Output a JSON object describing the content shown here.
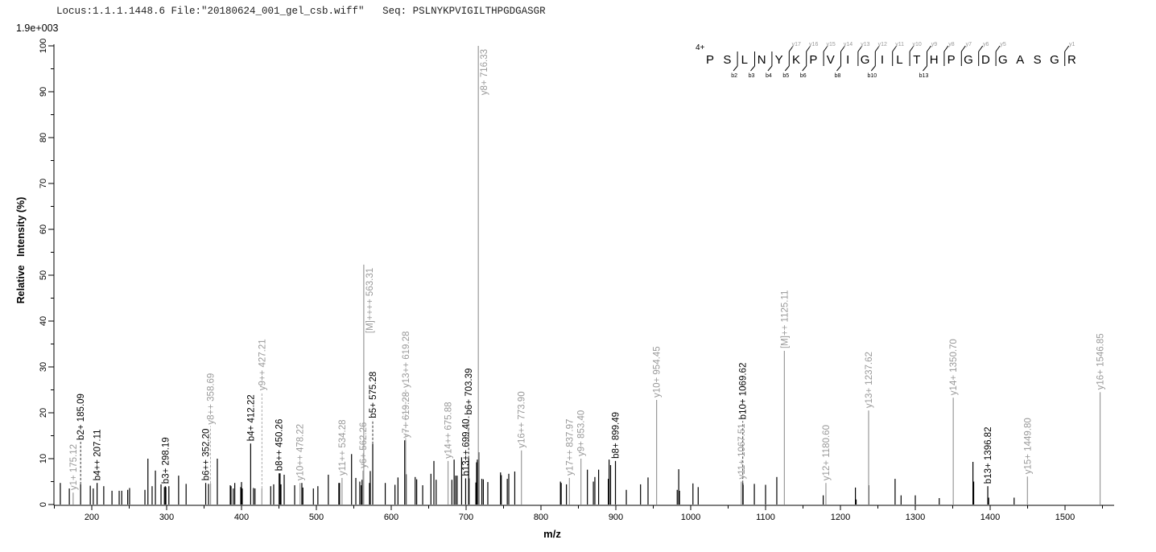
{
  "header": {
    "locus": "Locus:1.1.1.1448.6 File:\"20180624_001_gel_csb.wiff\"   Seq: PSLNYKPVIGILTHPGDGASGR",
    "intensity_scale": "1.9e+003"
  },
  "colors": {
    "b_ion": "#000000",
    "y_ion": "#999999",
    "peak": "#000000",
    "axis": "#000000"
  },
  "sequence_map": {
    "charge": "4+",
    "residues": [
      "P",
      "S",
      "L",
      "N",
      "Y",
      "K",
      "P",
      "V",
      "I",
      "G",
      "I",
      "L",
      "T",
      "H",
      "P",
      "G",
      "D",
      "G",
      "A",
      "S",
      "G",
      "R"
    ],
    "b_breaks": [
      {
        "after": 2,
        "label": "b2"
      },
      {
        "after": 3,
        "label": "b3"
      },
      {
        "after": 4,
        "label": "b4"
      },
      {
        "after": 5,
        "label": "b5"
      },
      {
        "after": 6,
        "label": "b6"
      },
      {
        "after": 8,
        "label": "b8"
      },
      {
        "after": 10,
        "label": "b10"
      },
      {
        "after": 13,
        "label": "b13"
      }
    ],
    "y_breaks": [
      {
        "after": 5,
        "label": "y17"
      },
      {
        "after": 6,
        "label": "y16"
      },
      {
        "after": 7,
        "label": "y15"
      },
      {
        "after": 8,
        "label": "y14"
      },
      {
        "after": 9,
        "label": "y13"
      },
      {
        "after": 10,
        "label": "y12"
      },
      {
        "after": 11,
        "label": "y11"
      },
      {
        "after": 12,
        "label": "y10"
      },
      {
        "after": 13,
        "label": "y9"
      },
      {
        "after": 14,
        "label": "y8"
      },
      {
        "after": 15,
        "label": "y7"
      },
      {
        "after": 16,
        "label": "y6"
      },
      {
        "after": 17,
        "label": "y5"
      },
      {
        "after": 21,
        "label": "y1"
      }
    ]
  },
  "chart_data": {
    "type": "bar",
    "title": "",
    "xlabel": "m/z",
    "ylabel": "Relative   Intensity (%)",
    "xlim": [
      150,
      1565
    ],
    "ylim": [
      0,
      100
    ],
    "xticks": [
      200,
      300,
      400,
      500,
      600,
      700,
      800,
      900,
      1000,
      1100,
      1200,
      1300,
      1400,
      1500
    ],
    "yticks": [
      0,
      10,
      20,
      30,
      40,
      50,
      60,
      70,
      80,
      90,
      100
    ],
    "grid": false,
    "labeled_peaks": [
      {
        "mz": 175.12,
        "intensity": 2.6,
        "label": "y1+ 175.12",
        "ion": "y"
      },
      {
        "mz": 185.09,
        "intensity": 4.4,
        "label": "b2+ 185.09",
        "ion": "b"
      },
      {
        "mz": 207.11,
        "intensity": 4.7,
        "label": "b4++ 207.11",
        "ion": "b"
      },
      {
        "mz": 298.19,
        "intensity": 4.0,
        "label": "b3+ 298.19",
        "ion": "b"
      },
      {
        "mz": 352.2,
        "intensity": 4.7,
        "label": "b6++ 352.20",
        "ion": "b"
      },
      {
        "mz": 358.69,
        "intensity": 4.6,
        "label": "y8++ 358.69",
        "ion": "y"
      },
      {
        "mz": 412.22,
        "intensity": 13.3,
        "label": "b4+ 412.22",
        "ion": "b"
      },
      {
        "mz": 427.21,
        "intensity": 3.5,
        "label": "y9++ 427.21",
        "ion": "y"
      },
      {
        "mz": 450.26,
        "intensity": 6.8,
        "label": "b8++ 450.26",
        "ion": "b"
      },
      {
        "mz": 478.22,
        "intensity": 4.7,
        "label": "y10++ 478.22",
        "ion": "y"
      },
      {
        "mz": 534.28,
        "intensity": 5.8,
        "label": "y11++ 534.28",
        "ion": "y"
      },
      {
        "mz": 562.26,
        "intensity": 7.4,
        "label": "y6+ 562.26",
        "ion": "y"
      },
      {
        "mz": 563.31,
        "intensity": 52.3,
        "label": "[M]++++ 563.31",
        "ion": "y"
      },
      {
        "mz": 575.28,
        "intensity": 13.2,
        "label": "b5+ 575.28",
        "ion": "b"
      },
      {
        "mz": 619.28,
        "intensity": 14.0,
        "label": "y7+ 619.28",
        "ion": "y"
      },
      {
        "mz": 619.28,
        "intensity": 14.0,
        "label": "y13++ 619.28",
        "ion": "y"
      },
      {
        "mz": 675.88,
        "intensity": 9.5,
        "label": "y14++ 675.88",
        "ion": "y"
      },
      {
        "mz": 699.4,
        "intensity": 5.7,
        "label": "b13++ 699.40",
        "ion": "b"
      },
      {
        "mz": 703.39,
        "intensity": 10.1,
        "label": "b6+ 703.39",
        "ion": "b"
      },
      {
        "mz": 716.33,
        "intensity": 100,
        "label": "y8+ 716.33",
        "ion": "y"
      },
      {
        "mz": 773.9,
        "intensity": 11.8,
        "label": "y16++ 773.90",
        "ion": "y"
      },
      {
        "mz": 837.97,
        "intensity": 5.8,
        "label": "y17++ 837.97",
        "ion": "y"
      },
      {
        "mz": 853.4,
        "intensity": 10.0,
        "label": "y9+ 853.40",
        "ion": "y"
      },
      {
        "mz": 899.49,
        "intensity": 9.5,
        "label": "b8+ 899.49",
        "ion": "b"
      },
      {
        "mz": 954.45,
        "intensity": 22.8,
        "label": "y10+ 954.45",
        "ion": "y"
      },
      {
        "mz": 1067.51,
        "intensity": 5.0,
        "label": "y11+ 1067.51",
        "ion": "y"
      },
      {
        "mz": 1069.62,
        "intensity": 4.7,
        "label": "b10+ 1069.62",
        "ion": "b"
      },
      {
        "mz": 1125.11,
        "intensity": 33.5,
        "label": "[M]++ 1125.11",
        "ion": "y"
      },
      {
        "mz": 1180.6,
        "intensity": 4.7,
        "label": "y12+ 1180.60",
        "ion": "y"
      },
      {
        "mz": 1237.62,
        "intensity": 20.5,
        "label": "y13+ 1237.62",
        "ion": "y"
      },
      {
        "mz": 1350.7,
        "intensity": 23.3,
        "label": "y14+ 1350.70",
        "ion": "y"
      },
      {
        "mz": 1396.82,
        "intensity": 4.0,
        "label": "b13+ 1396.82",
        "ion": "b"
      },
      {
        "mz": 1449.8,
        "intensity": 6.1,
        "label": "y15+ 1449.80",
        "ion": "y"
      },
      {
        "mz": 1546.85,
        "intensity": 24.5,
        "label": "y16+ 1546.85",
        "ion": "y"
      }
    ],
    "peaks": [
      [
        158,
        4.7
      ],
      [
        170,
        3.5
      ],
      [
        198,
        4.1
      ],
      [
        202,
        3.5
      ],
      [
        216,
        4
      ],
      [
        227,
        3
      ],
      [
        236.6,
        3
      ],
      [
        240,
        3
      ],
      [
        248,
        3.2
      ],
      [
        250.5,
        3.6
      ],
      [
        271,
        3.2
      ],
      [
        275,
        10
      ],
      [
        280.6,
        4
      ],
      [
        285,
        7.4
      ],
      [
        292.5,
        4.4
      ],
      [
        297,
        3.8
      ],
      [
        299,
        3.8
      ],
      [
        303,
        4
      ],
      [
        316,
        6.3
      ],
      [
        326,
        4.5
      ],
      [
        356,
        4.5
      ],
      [
        367.7,
        10
      ],
      [
        385,
        4.2
      ],
      [
        386,
        4
      ],
      [
        389,
        3.5
      ],
      [
        391,
        4.7
      ],
      [
        399,
        3.8
      ],
      [
        400,
        4.9
      ],
      [
        401,
        3.5
      ],
      [
        416,
        3.6
      ],
      [
        418,
        3.5
      ],
      [
        439,
        4
      ],
      [
        443,
        4.4
      ],
      [
        451.5,
        6.8
      ],
      [
        452.7,
        4.4
      ],
      [
        457,
        6.5
      ],
      [
        471,
        4.2
      ],
      [
        480.6,
        4.7
      ],
      [
        482,
        3.7
      ],
      [
        496,
        3.5
      ],
      [
        502,
        4
      ],
      [
        516,
        6.5
      ],
      [
        530,
        4.7
      ],
      [
        531,
        4.7
      ],
      [
        547,
        11
      ],
      [
        552.7,
        5.8
      ],
      [
        558,
        5
      ],
      [
        560,
        4.2
      ],
      [
        561,
        5.4
      ],
      [
        571,
        4.7
      ],
      [
        572,
        7.3
      ],
      [
        592,
        4.7
      ],
      [
        605,
        4.3
      ],
      [
        609,
        5.9
      ],
      [
        618,
        14
      ],
      [
        620,
        6.6
      ],
      [
        632,
        6
      ],
      [
        634,
        5.5
      ],
      [
        642,
        4.2
      ],
      [
        653,
        6.7
      ],
      [
        657,
        9.5
      ],
      [
        660,
        5.4
      ],
      [
        681,
        5.4
      ],
      [
        684,
        9.8
      ],
      [
        686,
        6.3
      ],
      [
        688,
        6.3
      ],
      [
        694,
        10.3
      ],
      [
        704,
        5.7
      ],
      [
        713,
        4.8
      ],
      [
        714,
        9.2
      ],
      [
        715,
        9.8
      ],
      [
        717,
        11.4
      ],
      [
        721,
        5.6
      ],
      [
        723,
        5.5
      ],
      [
        729,
        4.9
      ],
      [
        746,
        7
      ],
      [
        747,
        6.4
      ],
      [
        755,
        5.6
      ],
      [
        757,
        6.7
      ],
      [
        765,
        7.2
      ],
      [
        826,
        5
      ],
      [
        827,
        4.7
      ],
      [
        834,
        4.4
      ],
      [
        862,
        7.6
      ],
      [
        870,
        5
      ],
      [
        872,
        6
      ],
      [
        877,
        7.6
      ],
      [
        890,
        5.6
      ],
      [
        891,
        9.8
      ],
      [
        893,
        8.6
      ],
      [
        914,
        3.2
      ],
      [
        933,
        4.4
      ],
      [
        943,
        5.9
      ],
      [
        982,
        3.2
      ],
      [
        984,
        7.7
      ],
      [
        985,
        3
      ],
      [
        1003,
        4.6
      ],
      [
        1010,
        3.8
      ],
      [
        1070,
        4.3
      ],
      [
        1085,
        4.5
      ],
      [
        1100,
        4.3
      ],
      [
        1115,
        6
      ],
      [
        1177,
        2
      ],
      [
        1220,
        3.7
      ],
      [
        1221,
        1.1
      ],
      [
        1238,
        4.2
      ],
      [
        1273,
        5.6
      ],
      [
        1281,
        2
      ],
      [
        1300,
        2
      ],
      [
        1332,
        1.4
      ],
      [
        1377,
        9.3
      ],
      [
        1378,
        5
      ],
      [
        1398,
        1.5
      ],
      [
        1432,
        1.5
      ]
    ]
  }
}
